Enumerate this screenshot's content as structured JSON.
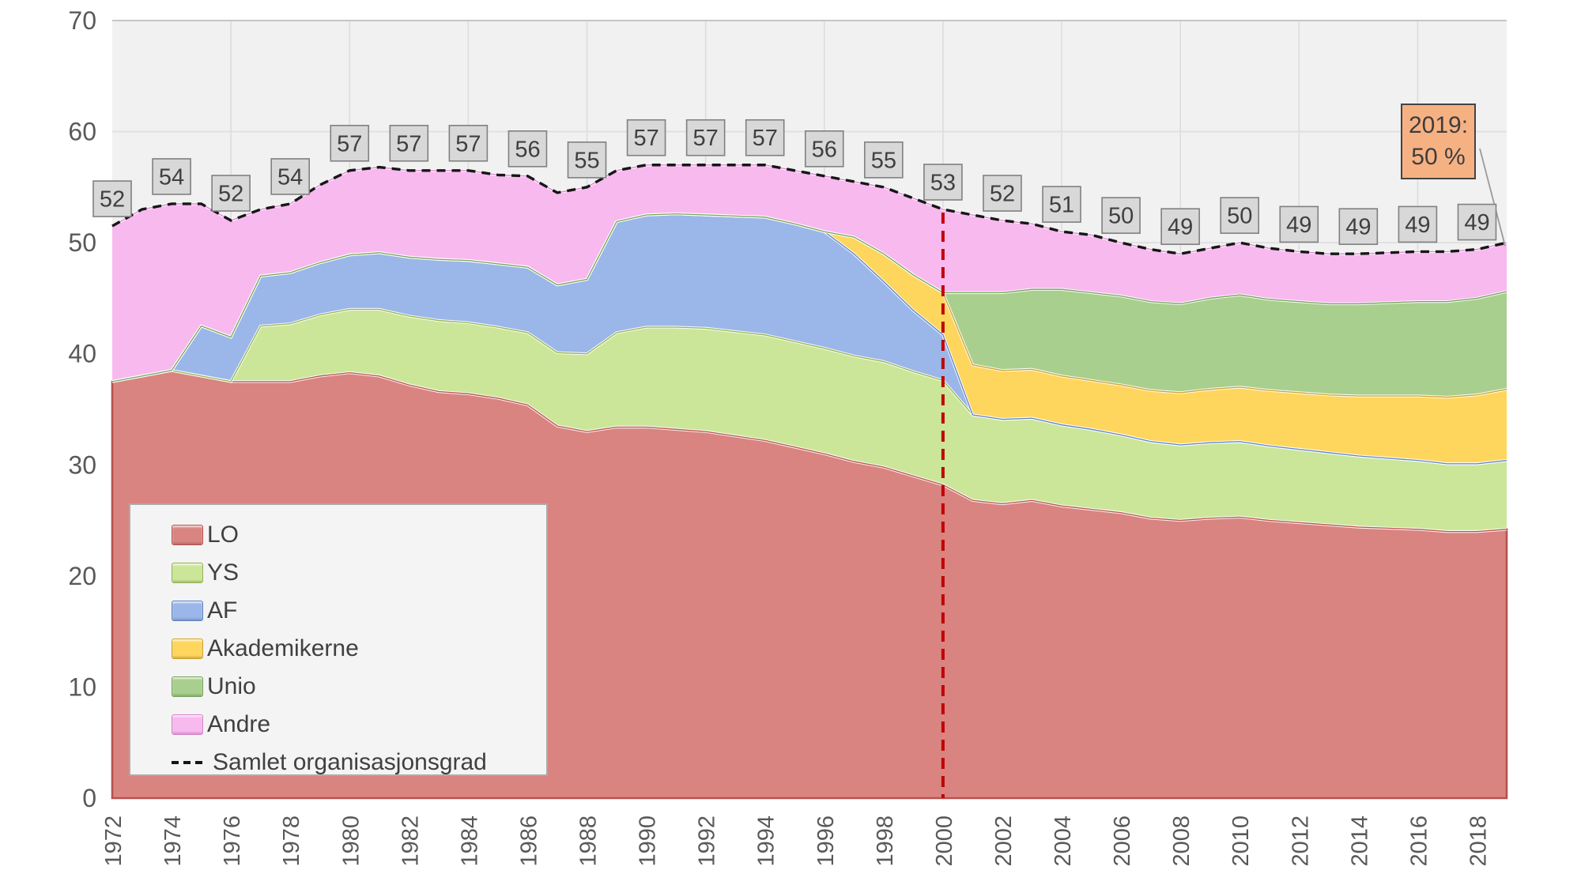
{
  "chart_data": {
    "type": "area",
    "stacked": true,
    "title": "",
    "xlabel": "",
    "ylabel": "",
    "ylim": [
      0,
      70
    ],
    "grid": true,
    "legend_position": "inside-bottom-left",
    "x": [
      1972,
      1973,
      1974,
      1975,
      1976,
      1977,
      1978,
      1979,
      1980,
      1981,
      1982,
      1983,
      1984,
      1985,
      1986,
      1987,
      1988,
      1989,
      1990,
      1991,
      1992,
      1993,
      1994,
      1995,
      1996,
      1997,
      1998,
      1999,
      2000,
      2001,
      2002,
      2003,
      2004,
      2005,
      2006,
      2007,
      2008,
      2009,
      2010,
      2011,
      2012,
      2013,
      2014,
      2015,
      2016,
      2017,
      2018,
      2019
    ],
    "series": [
      {
        "name": "LO",
        "fill": "#d98480",
        "border": "#b8524e",
        "values": [
          37.5,
          38,
          38.5,
          38,
          37.5,
          37.5,
          37.5,
          38,
          38.3,
          38,
          37.2,
          36.6,
          36.4,
          36,
          35.4,
          33.5,
          33,
          33.4,
          33.4,
          33.2,
          33,
          32.6,
          32.2,
          31.6,
          31,
          30.3,
          29.8,
          29,
          28.2,
          26.8,
          26.5,
          26.8,
          26.3,
          26,
          25.7,
          25.2,
          25,
          25.2,
          25.3,
          25,
          24.8,
          24.6,
          24.4,
          24.3,
          24.2,
          24,
          24,
          24.2
        ]
      },
      {
        "name": "YS",
        "fill": "#cbe699",
        "border": "#94b350",
        "values": [
          0,
          0,
          0,
          0,
          0,
          5,
          5.2,
          5.5,
          5.7,
          6,
          6.2,
          6.4,
          6.4,
          6.4,
          6.5,
          6.6,
          7,
          8.5,
          9,
          9.2,
          9.3,
          9.4,
          9.5,
          9.5,
          9.5,
          9.5,
          9.5,
          9.4,
          9.4,
          7.7,
          7.6,
          7.4,
          7.3,
          7.2,
          7,
          6.9,
          6.8,
          6.8,
          6.8,
          6.7,
          6.6,
          6.5,
          6.4,
          6.3,
          6.2,
          6.1,
          6.1,
          6.2
        ]
      },
      {
        "name": "AF",
        "fill": "#9bb6e8",
        "border": "#5c83c4",
        "values": [
          0,
          0,
          0,
          4.5,
          4,
          4.5,
          4.6,
          4.7,
          4.9,
          5.1,
          5.3,
          5.5,
          5.6,
          5.7,
          5.9,
          6.1,
          6.7,
          10,
          10.1,
          10.2,
          10.2,
          10.4,
          10.6,
          10.6,
          10.5,
          9.2,
          7.2,
          5.5,
          4.1,
          0,
          0,
          0,
          0,
          0,
          0,
          0,
          0,
          0,
          0,
          0,
          0,
          0,
          0,
          0,
          0,
          0,
          0,
          0
        ]
      },
      {
        "name": "Akademikerne",
        "fill": "#fed65e",
        "border": "#cfa12e",
        "values": [
          0,
          0,
          0,
          0,
          0,
          0,
          0,
          0,
          0,
          0,
          0,
          0,
          0,
          0,
          0,
          0,
          0,
          0,
          0,
          0,
          0,
          0,
          0,
          0,
          0,
          1.5,
          2.5,
          3.2,
          3.8,
          4.5,
          4.4,
          4.4,
          4.4,
          4.4,
          4.5,
          4.6,
          4.7,
          4.8,
          4.9,
          5,
          5.1,
          5.2,
          5.4,
          5.6,
          5.8,
          6,
          6.2,
          6.4
        ]
      },
      {
        "name": "Unio",
        "fill": "#a8cf8e",
        "border": "#74a35a",
        "values": [
          0,
          0,
          0,
          0,
          0,
          0,
          0,
          0,
          0,
          0,
          0,
          0,
          0,
          0,
          0,
          0,
          0,
          0,
          0,
          0,
          0,
          0,
          0,
          0,
          0,
          0,
          0,
          0,
          0,
          6.5,
          7,
          7.2,
          7.8,
          7.9,
          8,
          8,
          8,
          8.2,
          8.3,
          8.2,
          8.2,
          8.2,
          8.3,
          8.4,
          8.5,
          8.6,
          8.7,
          8.8
        ]
      },
      {
        "name": "Andre",
        "fill": "#f8b9ef",
        "border": "#d981cc",
        "values": [
          14,
          15,
          15,
          11,
          10.5,
          6,
          6.2,
          7,
          7.6,
          7.7,
          7.8,
          8,
          8.1,
          8,
          8.2,
          8.3,
          8.3,
          4.6,
          4.5,
          4.4,
          4.5,
          4.6,
          4.7,
          4.8,
          5,
          5,
          6,
          6.9,
          7.5,
          7,
          6.5,
          5.9,
          5.2,
          5.2,
          4.8,
          4.7,
          4.5,
          4.5,
          4.7,
          4.6,
          4.5,
          4.5,
          4.5,
          4.5,
          4.5,
          4.5,
          4.4,
          4.4
        ]
      }
    ],
    "total_line": {
      "name": "Samlet organisasjonsgrad",
      "color": "#161616",
      "style": "dashed"
    },
    "data_labels": {
      "years": [
        1972,
        1974,
        1976,
        1978,
        1980,
        1982,
        1984,
        1986,
        1988,
        1990,
        1992,
        1994,
        1996,
        1998,
        2000,
        2002,
        2004,
        2006,
        2008,
        2010,
        2012,
        2014,
        2016,
        2018
      ],
      "values": [
        52,
        54,
        52,
        54,
        57,
        57,
        57,
        56,
        55,
        57,
        57,
        57,
        56,
        55,
        53,
        52,
        51,
        50,
        49,
        50,
        49,
        49,
        49,
        49
      ]
    },
    "reference_line": {
      "year": 2000,
      "color": "#c00000"
    },
    "annotation": {
      "line1": "2019:",
      "line2": "50 %",
      "year": 2019,
      "value": 50
    },
    "y_ticks": [
      0,
      10,
      20,
      30,
      40,
      50,
      60,
      70
    ],
    "x_ticks": [
      1972,
      1974,
      1976,
      1978,
      1980,
      1982,
      1984,
      1986,
      1988,
      1990,
      1992,
      1994,
      1996,
      1998,
      2000,
      2002,
      2004,
      2006,
      2008,
      2010,
      2012,
      2014,
      2016,
      2018
    ],
    "x_gridlines": [
      1976,
      1980,
      1984,
      1988,
      1992,
      1996,
      2000,
      2004,
      2008,
      2012,
      2016
    ]
  },
  "colors": {
    "plot_bg": "#f1f1f1",
    "gridline": "#dddddd",
    "plot_top_border": "#c6c6c6",
    "axis_text": "#595959",
    "label_box_bg": "#d8d8d8",
    "label_box_border": "#808080",
    "label_text": "#3f3f3f",
    "annotation_bg": "#f6b183",
    "annotation_border": "#444444",
    "leader_line": "#9a9a9a"
  }
}
